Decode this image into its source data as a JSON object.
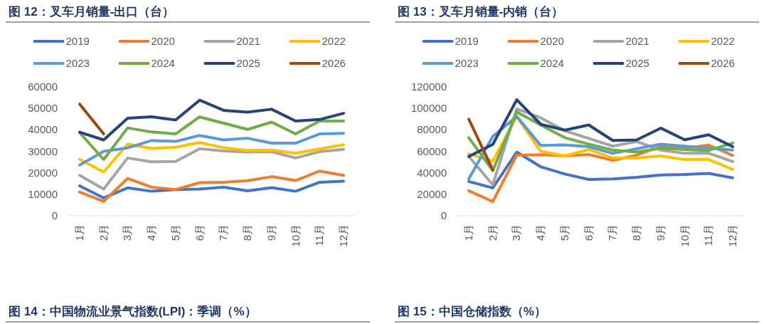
{
  "chart_data": [
    {
      "type": "line",
      "title": "图 12：叉车月销量-出口（台）",
      "categories": [
        "1月",
        "2月",
        "3月",
        "4月",
        "5月",
        "6月",
        "7月",
        "8月",
        "9月",
        "10月",
        "11月",
        "12月"
      ],
      "ylim": [
        0,
        60000
      ],
      "yticks": [
        0,
        10000,
        20000,
        30000,
        40000,
        50000,
        60000
      ],
      "legend": "top",
      "annotations": [
        "图 14：中国物流业景气指数(LPI)：季调（%）"
      ],
      "series": [
        {
          "name": "2019",
          "color": "#4472c4",
          "values": [
            13900,
            8300,
            13000,
            11400,
            12200,
            12400,
            13300,
            11600,
            13100,
            11400,
            15600,
            16100
          ]
        },
        {
          "name": "2020",
          "color": "#ed7d31",
          "values": [
            11100,
            6700,
            17400,
            13300,
            12200,
            15400,
            15600,
            16300,
            18200,
            16400,
            20800,
            18800
          ]
        },
        {
          "name": "2021",
          "color": "#a5a5a5",
          "values": [
            18800,
            12400,
            26900,
            25100,
            25300,
            31200,
            30200,
            29700,
            29800,
            26900,
            29800,
            30900
          ]
        },
        {
          "name": "2022",
          "color": "#ffc000",
          "values": [
            26300,
            20400,
            33300,
            31300,
            31900,
            34100,
            31700,
            30400,
            30600,
            29100,
            31100,
            33100
          ]
        },
        {
          "name": "2023",
          "color": "#5b9bd5",
          "values": [
            23600,
            30000,
            31600,
            35000,
            34600,
            37400,
            35300,
            36100,
            33800,
            33800,
            38100,
            38400
          ]
        },
        {
          "name": "2024",
          "color": "#70ad47",
          "values": [
            38700,
            26200,
            40900,
            39000,
            38100,
            46000,
            43100,
            40200,
            43600,
            38100,
            44100,
            44100
          ]
        },
        {
          "name": "2025",
          "color": "#264478",
          "values": [
            38900,
            35300,
            45400,
            46100,
            44600,
            53800,
            49100,
            48200,
            49600,
            44100,
            44800,
            47700
          ]
        },
        {
          "name": "2026",
          "color": "#9e480e",
          "values": [
            52000,
            38100,
            null,
            null,
            null,
            null,
            null,
            null,
            null,
            null,
            null,
            null
          ]
        }
      ]
    },
    {
      "type": "line",
      "title": "图 13：叉车月销量-内销（台）",
      "categories": [
        "1月",
        "2月",
        "3月",
        "4月",
        "5月",
        "6月",
        "7月",
        "8月",
        "9月",
        "10月",
        "11月",
        "12月"
      ],
      "ylim": [
        0,
        120000
      ],
      "yticks": [
        0,
        20000,
        40000,
        60000,
        80000,
        100000,
        120000
      ],
      "legend": "top",
      "annotations": [
        "图 15：中国仓储指数（%）"
      ],
      "series": [
        {
          "name": "2019",
          "color": "#4472c4",
          "values": [
            31900,
            25900,
            59300,
            45600,
            38900,
            33800,
            34300,
            35800,
            37900,
            38400,
            39400,
            35300
          ]
        },
        {
          "name": "2020",
          "color": "#ed7d31",
          "values": [
            23300,
            13200,
            56400,
            56900,
            55700,
            57100,
            51600,
            56400,
            64800,
            62900,
            65800,
            56200
          ]
        },
        {
          "name": "2021",
          "color": "#a5a5a5",
          "values": [
            55200,
            28800,
            99600,
            91200,
            79200,
            72000,
            64800,
            69100,
            61200,
            58100,
            58300,
            50400
          ]
        },
        {
          "name": "2022",
          "color": "#ffc000",
          "values": [
            57600,
            50900,
            92400,
            60000,
            55700,
            61700,
            53800,
            53800,
            55700,
            52300,
            52300,
            43200
          ]
        },
        {
          "name": "2023",
          "color": "#5b9bd5",
          "values": [
            34300,
            73900,
            92400,
            65500,
            66000,
            64300,
            58100,
            62400,
            66700,
            64800,
            62900,
            61200
          ]
        },
        {
          "name": "2024",
          "color": "#70ad47",
          "values": [
            72700,
            42000,
            96700,
            84500,
            72700,
            66700,
            61200,
            59300,
            62900,
            61700,
            60700,
            67700
          ]
        },
        {
          "name": "2025",
          "color": "#264478",
          "values": [
            55200,
            66500,
            108000,
            85200,
            79700,
            84500,
            70100,
            70600,
            81600,
            70800,
            75400,
            64300
          ]
        },
        {
          "name": "2026",
          "color": "#9e480e",
          "values": [
            90000,
            42700,
            null,
            null,
            null,
            null,
            null,
            null,
            null,
            null,
            null,
            null
          ]
        }
      ]
    }
  ]
}
